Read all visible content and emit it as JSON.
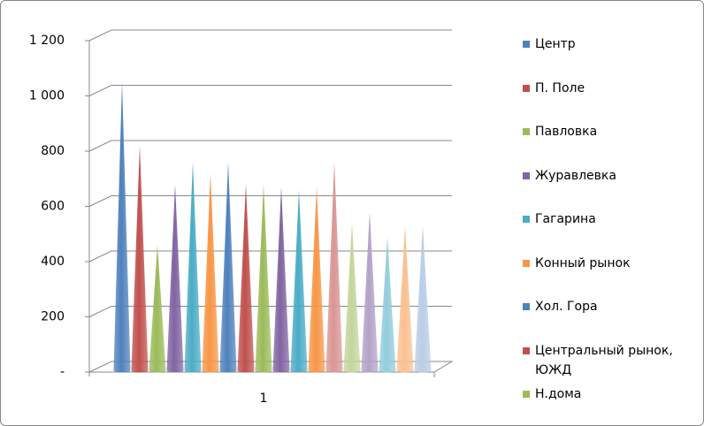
{
  "chart_data": {
    "type": "cone",
    "categories": [
      "1"
    ],
    "ylim": [
      0,
      1200
    ],
    "yticks": [
      {
        "value": 0,
        "label": "-"
      },
      200,
      400,
      600,
      800,
      {
        "value": 1000,
        "label": "1 000"
      },
      {
        "value": 1200,
        "label": "1 200"
      }
    ],
    "grid": true,
    "series": [
      {
        "name": "Центр",
        "color": "#4F81BD",
        "values": [
          1050
        ]
      },
      {
        "name": "П. Поле",
        "color": "#C0504D",
        "values": [
          820
        ]
      },
      {
        "name": "Павловка",
        "color": "#9BBB59",
        "values": [
          460
        ]
      },
      {
        "name": "Журавлевка",
        "color": "#8064A2",
        "values": [
          680
        ]
      },
      {
        "name": "Гагарина",
        "color": "#4BACC6",
        "values": [
          760
        ]
      },
      {
        "name": "Конный рынок",
        "color": "#F79646",
        "values": [
          720
        ]
      },
      {
        "name": "Хол. Гора",
        "color": "#4F81BD",
        "values": [
          760
        ]
      },
      {
        "name": "Центральный рынок, ЮЖД",
        "color": "#C0504D",
        "values": [
          680
        ]
      },
      {
        "name": "Н.дома",
        "color": "#9BBB59",
        "values": [
          680
        ]
      },
      {
        "name": null,
        "color": "#8064A2",
        "values": [
          670
        ]
      },
      {
        "name": null,
        "color": "#4BACC6",
        "values": [
          660
        ]
      },
      {
        "name": null,
        "color": "#F79646",
        "values": [
          670
        ]
      },
      {
        "name": null,
        "color": "#D99694",
        "values": [
          760
        ]
      },
      {
        "name": null,
        "color": "#C3D69B",
        "values": [
          540
        ]
      },
      {
        "name": null,
        "color": "#B3A2C7",
        "values": [
          580
        ]
      },
      {
        "name": null,
        "color": "#93CDDD",
        "values": [
          490
        ]
      },
      {
        "name": null,
        "color": "#FAC090",
        "values": [
          530
        ]
      },
      {
        "name": null,
        "color": "#B9CDE5",
        "values": [
          530
        ]
      }
    ]
  }
}
